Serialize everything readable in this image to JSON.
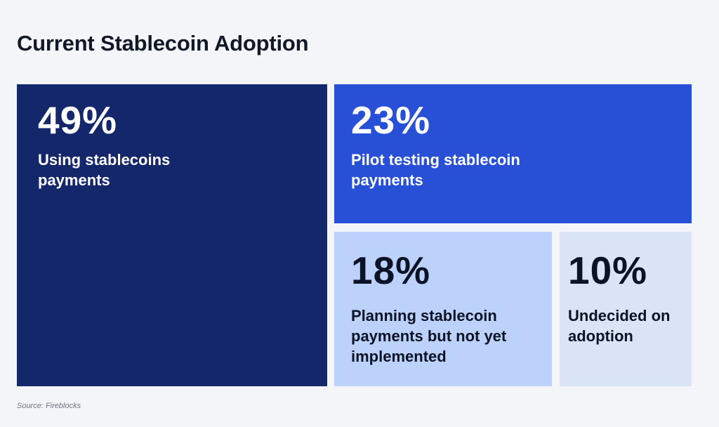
{
  "chart_data": {
    "type": "treemap",
    "title": "Current Stablecoin Adoption",
    "items": [
      {
        "value": 49,
        "display": "49%",
        "label": "Using stablecoins payments",
        "color": "#15276b",
        "text_color": "#ffffff"
      },
      {
        "value": 23,
        "display": "23%",
        "label": "Pilot testing stablecoin payments",
        "color": "#2850d6",
        "text_color": "#ffffff"
      },
      {
        "value": 18,
        "display": "18%",
        "label": "Planning stablecoin payments but not yet implemented",
        "color": "#bcd2fb",
        "text_color": "#0d1326"
      },
      {
        "value": 10,
        "display": "10%",
        "label": "Undecided on adoption",
        "color": "#dbe4f5",
        "text_color": "#0d1326"
      }
    ],
    "source": "Source: Fireblocks"
  }
}
